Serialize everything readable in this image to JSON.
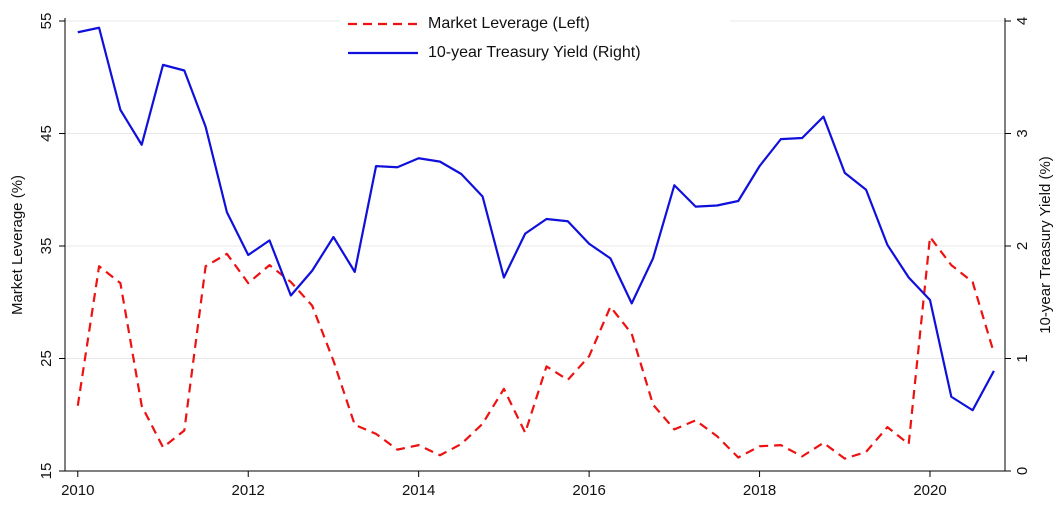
{
  "chart_data": {
    "type": "line",
    "y_label": "Market Leverage (%)",
    "y2_label": "10-year Treasury Yield (%)",
    "x": [
      2010,
      2010.25,
      2010.5,
      2010.75,
      2011,
      2011.25,
      2011.5,
      2011.75,
      2012,
      2012.25,
      2012.5,
      2012.75,
      2013,
      2013.25,
      2013.5,
      2013.75,
      2014,
      2014.25,
      2014.5,
      2014.75,
      2015,
      2015.25,
      2015.5,
      2015.75,
      2016,
      2016.25,
      2016.5,
      2016.75,
      2017,
      2017.25,
      2017.5,
      2017.75,
      2018,
      2018.25,
      2018.5,
      2018.75,
      2019,
      2019.25,
      2019.5,
      2019.75,
      2020,
      2020.25,
      2020.5,
      2020.75
    ],
    "series": [
      {
        "name": "Market Leverage (Left)",
        "color": "#ee1111",
        "dash": true,
        "values": [
          20.8,
          33.2,
          31.7,
          20.8,
          17.1,
          18.6,
          33.2,
          34.3,
          31.7,
          33.3,
          31.8,
          29.7,
          24.8,
          19.1,
          18.3,
          16.9,
          17.3,
          16.4,
          17.4,
          19.2,
          22.3,
          18.4,
          24.3,
          23.1,
          25.2,
          29.6,
          27.2,
          20.9,
          18.7,
          19.5,
          18.1,
          16.2,
          17.2,
          17.3,
          16.3,
          17.5,
          16.1,
          16.7,
          18.9,
          17.4,
          35.8,
          33.3,
          31.8,
          25.5
        ]
      },
      {
        "name": "10-year Treasury Yield (Right)",
        "color": "#1010dd",
        "axis": "y2",
        "values": [
          3.9,
          3.94,
          3.21,
          2.9,
          3.61,
          3.56,
          3.06,
          2.3,
          1.92,
          2.05,
          1.56,
          1.78,
          2.08,
          1.77,
          2.71,
          2.7,
          2.78,
          2.75,
          2.64,
          2.44,
          1.72,
          2.11,
          2.24,
          2.22,
          2.02,
          1.89,
          1.49,
          1.89,
          2.54,
          2.35,
          2.36,
          2.4,
          2.71,
          2.95,
          2.96,
          3.15,
          2.65,
          2.5,
          2.01,
          1.72,
          1.52,
          0.66,
          0.54,
          0.89
        ]
      }
    ],
    "xlim": [
      2009.85,
      2020.88
    ],
    "xticks": [
      2010,
      2012,
      2014,
      2016,
      2018,
      2020
    ],
    "ylim": [
      15,
      55
    ],
    "yticks": [
      15,
      25,
      35,
      45,
      55
    ],
    "y2lim": [
      0,
      4
    ],
    "y2ticks": [
      0,
      1,
      2,
      3,
      4
    ],
    "grid": true,
    "legend": "top"
  }
}
